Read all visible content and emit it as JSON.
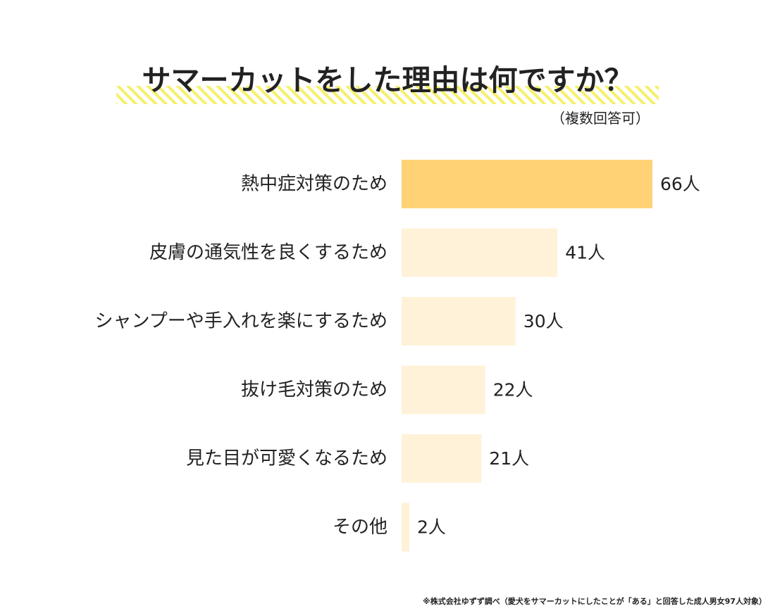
{
  "chart_data": {
    "type": "bar",
    "orientation": "horizontal",
    "title": "サマーカットをした理由は何ですか？",
    "subtitle": "（複数回答可）",
    "categories": [
      "熱中症対策のため",
      "皮膚の通気性を良くするため",
      "シャンプーや手入れを楽にするため",
      "抜け毛対策のため",
      "見た目が可愛くなるため",
      "その他"
    ],
    "values": [
      66,
      41,
      30,
      22,
      21,
      2
    ],
    "value_labels": [
      "66人",
      "41人",
      "30人",
      "22人",
      "21人",
      "2人"
    ],
    "unit": "人",
    "highlight_index": 0,
    "colors": {
      "highlight": "#FFD275",
      "bar": "#FFF2D8",
      "title_underline": "#F5F06A",
      "text": "#222222"
    },
    "grid": false,
    "legend": "none",
    "footnote": "※株式会社ゆずず調べ（愛犬をサマーカットにしたことが「ある」と回答した成人男女97人対象）"
  }
}
